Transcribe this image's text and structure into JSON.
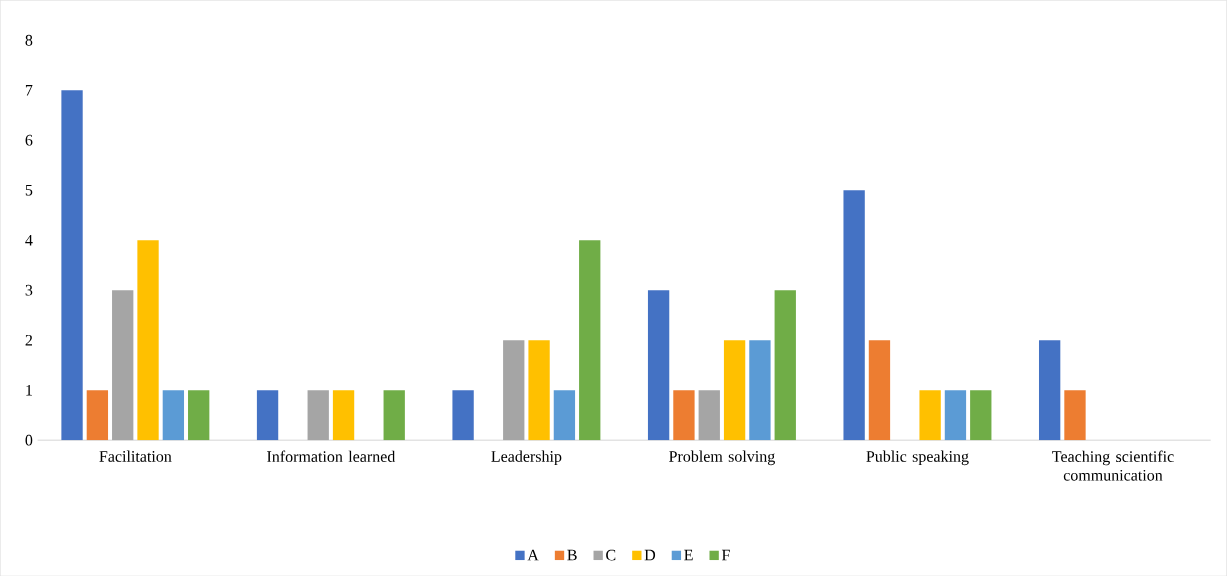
{
  "chart_data": {
    "type": "bar",
    "categories": [
      "Facilitation",
      "Information learned",
      "Leadership",
      "Problem solving",
      "Public speaking",
      "Teaching scientific communication"
    ],
    "series": [
      {
        "name": "A",
        "color": "#4472c4",
        "values": [
          7,
          1,
          1,
          3,
          5,
          2
        ]
      },
      {
        "name": "B",
        "color": "#ed7d31",
        "values": [
          1,
          0,
          0,
          1,
          2,
          1
        ]
      },
      {
        "name": "C",
        "color": "#a5a5a5",
        "values": [
          3,
          1,
          2,
          1,
          0,
          0
        ]
      },
      {
        "name": "D",
        "color": "#ffc000",
        "values": [
          4,
          1,
          2,
          2,
          1,
          0
        ]
      },
      {
        "name": "E",
        "color": "#5b9bd5",
        "values": [
          1,
          0,
          1,
          2,
          1,
          0
        ]
      },
      {
        "name": "F",
        "color": "#70ad47",
        "values": [
          1,
          1,
          4,
          3,
          1,
          0
        ]
      }
    ],
    "ylim": [
      0,
      8
    ],
    "yticks": [
      0,
      1,
      2,
      3,
      4,
      5,
      6,
      7,
      8
    ],
    "grid": false,
    "legend": "bottom"
  }
}
